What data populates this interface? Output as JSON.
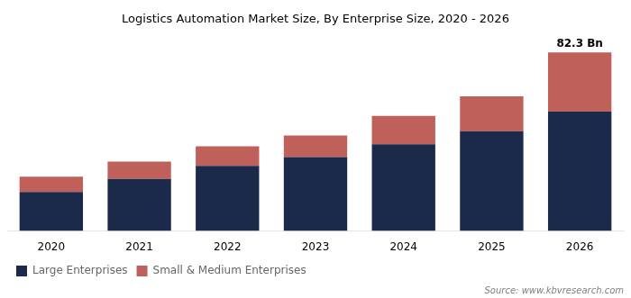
{
  "chart_data": {
    "type": "bar",
    "title": "Logistics Automation Market Size, By Enterprise Size, 2020 - 2026",
    "categories": [
      "2020",
      "2021",
      "2022",
      "2023",
      "2024",
      "2025",
      "2026"
    ],
    "series": [
      {
        "name": "Large Enterprises",
        "color": "#1b2a4a",
        "values": [
          18,
          24,
          30,
          34,
          40,
          46,
          55
        ]
      },
      {
        "name": "Small & Medium Enterprises",
        "color": "#c0605a",
        "values": [
          7,
          8,
          9,
          10,
          13,
          16,
          27.3
        ]
      }
    ],
    "stacked": true,
    "ylim": [
      0,
      90
    ],
    "grid": false,
    "legend": "lower left",
    "tick_labels": "x",
    "annotations": [
      {
        "text": "82.3 Bn",
        "category": "2026",
        "value": 82.3
      }
    ],
    "source": "Source: www.kbvresearch.com"
  }
}
